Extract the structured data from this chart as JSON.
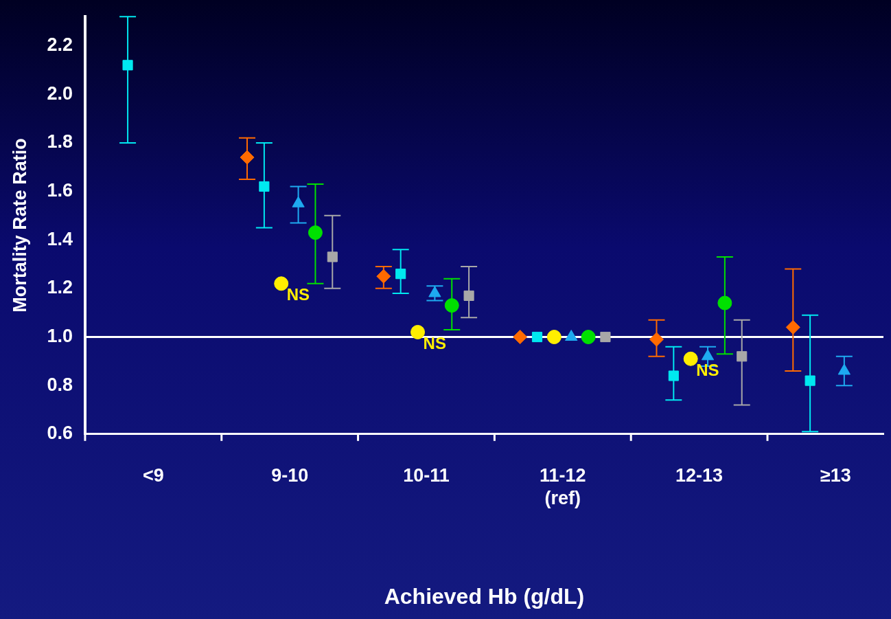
{
  "chart_data": {
    "type": "scatter",
    "xlabel": "Achieved Hb (g/dL)",
    "ylabel": "Mortality Rate Ratio",
    "categories": [
      "<9",
      "9-10",
      "10-11",
      "11-12\n(ref)",
      "12-13",
      "≥13"
    ],
    "ylim": [
      0.6,
      2.32
    ],
    "yticks": [
      0.6,
      0.8,
      {
        "value": 1,
        "label": "1.0"
      },
      1.2,
      1.4,
      1.6,
      1.8,
      {
        "value": 2,
        "label": "2.0"
      },
      2.2
    ],
    "grid": false,
    "legend": false,
    "series": [
      {
        "color": "#ff6a00",
        "marker": "diamond",
        "values": [
          null,
          1.74,
          1.25,
          1,
          0.99,
          1.04
        ],
        "errors": [
          null,
          [
            1.65,
            1.82
          ],
          [
            1.2,
            1.29
          ],
          null,
          [
            0.92,
            1.07
          ],
          [
            0.86,
            1.28
          ]
        ]
      },
      {
        "color": "#00e8f0",
        "marker": "square",
        "values": [
          2.12,
          1.62,
          1.26,
          1,
          0.84,
          0.82
        ],
        "errors": [
          [
            1.8,
            2.32
          ],
          [
            1.45,
            1.8
          ],
          [
            1.18,
            1.36
          ],
          null,
          [
            0.74,
            0.96
          ],
          [
            0.61,
            1.09
          ]
        ]
      },
      {
        "color": "#ffee00",
        "marker": "circle",
        "values": [
          null,
          1.22,
          1.02,
          1,
          0.91,
          null
        ]
      },
      {
        "color": "#1eaaf0",
        "marker": "triangle",
        "values": [
          null,
          1.55,
          1.18,
          1,
          0.92,
          0.86
        ],
        "errors": [
          null,
          [
            1.47,
            1.62
          ],
          [
            1.15,
            1.21
          ],
          null,
          [
            0.88,
            0.96
          ],
          [
            0.8,
            0.92
          ]
        ]
      },
      {
        "color": "#00e000",
        "marker": "circle",
        "values": [
          null,
          1.43,
          1.13,
          1,
          1.14,
          null
        ],
        "errors": [
          null,
          [
            1.22,
            1.63
          ],
          [
            1.03,
            1.24
          ],
          null,
          [
            0.93,
            1.33
          ],
          null
        ]
      },
      {
        "color": "#a8a8a8",
        "marker": "square",
        "values": [
          null,
          1.33,
          1.17,
          1,
          0.92,
          null
        ],
        "errors": [
          null,
          [
            1.2,
            1.5
          ],
          [
            1.08,
            1.29
          ],
          null,
          [
            0.72,
            1.07
          ],
          null
        ]
      }
    ],
    "ref_lines": [
      {
        "axis": "y",
        "value": 1,
        "color": "#ffffff"
      }
    ],
    "annotations": [
      {
        "text": "NS",
        "x": "9-10",
        "y": 1.22
      },
      {
        "text": "NS",
        "x": "10-11",
        "y": 1.02
      },
      {
        "text": "NS",
        "x": "12-13",
        "y": 0.91
      }
    ]
  }
}
